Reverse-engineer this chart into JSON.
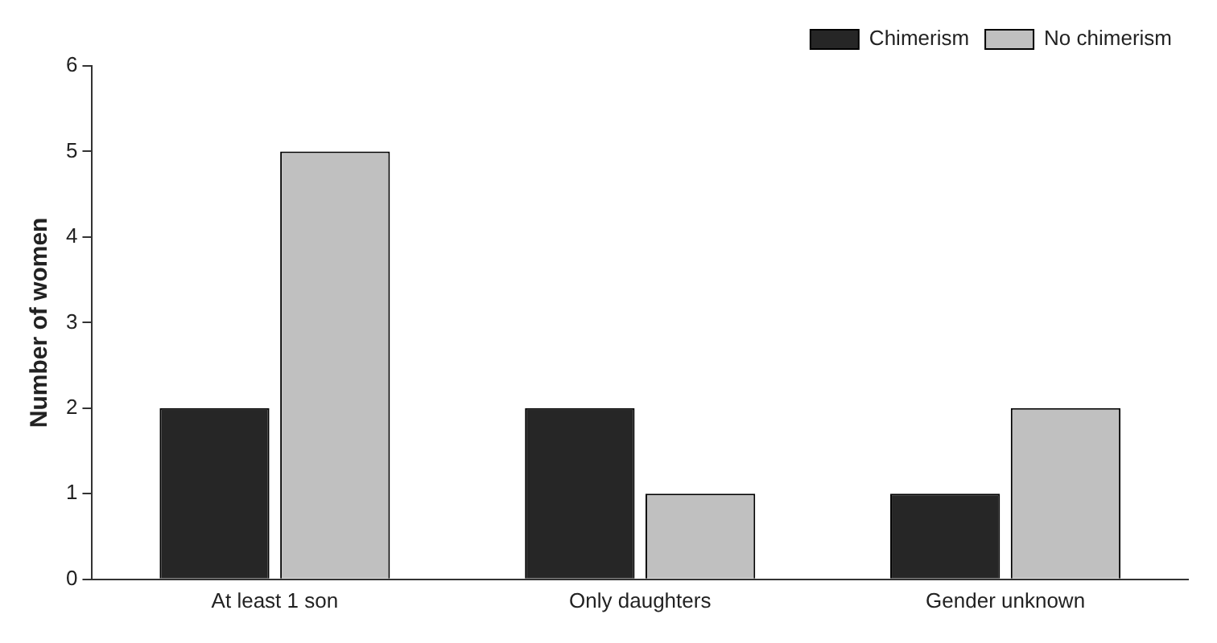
{
  "chart_data": {
    "type": "bar",
    "ylabel": "Number of women",
    "categories": [
      "At least 1 son",
      "Only daughters",
      "Gender unknown"
    ],
    "series": [
      {
        "name": "Chimerism",
        "color": "#262626",
        "values": [
          2,
          2,
          1
        ]
      },
      {
        "name": "No chimerism",
        "color": "#c0c0c0",
        "values": [
          5,
          1,
          2
        ]
      }
    ],
    "ylim": [
      0,
      6
    ],
    "yticks": [
      0,
      1,
      2,
      3,
      4,
      5,
      6
    ],
    "grid": false,
    "legend": "top right"
  }
}
